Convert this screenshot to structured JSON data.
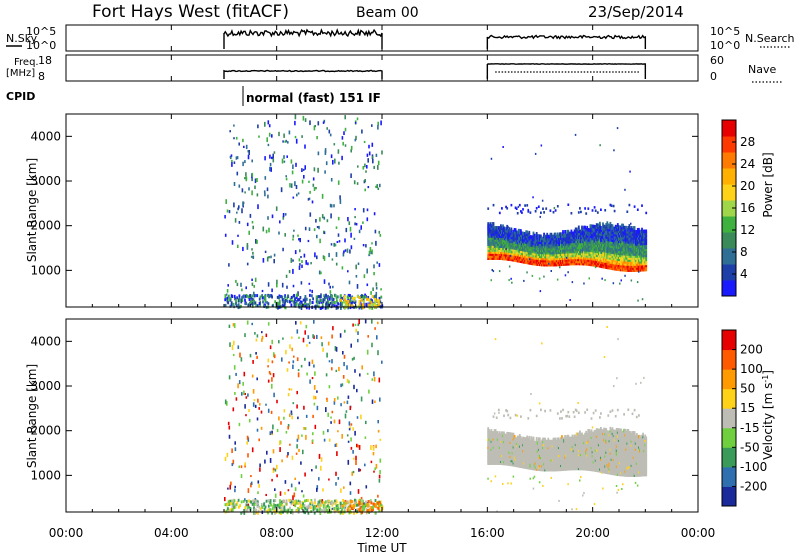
{
  "header": {
    "radar": "Fort Hays West (fitACF)",
    "beam": "Beam 00",
    "date": "23/Sep/2014"
  },
  "noise_panel": {
    "left_label": "N.Sky",
    "right_label": "N.Search",
    "left_ticks": [
      "10^5",
      "10^0"
    ],
    "right_ticks": [
      "10^5",
      "10^0"
    ]
  },
  "freq_panel": {
    "left_label_line1": "Freq.",
    "left_label_line2": "[MHz]",
    "right_label": "Nave",
    "left_ticks": [
      "18",
      "8"
    ],
    "right_ticks": [
      "60",
      "0"
    ]
  },
  "cpid": {
    "label": "CPID",
    "mode": "normal (fast) 151 IF"
  },
  "x_axis": {
    "label": "Time UT",
    "ticks": [
      "00:00",
      "04:00",
      "08:00",
      "12:00",
      "16:00",
      "20:00",
      "00:00"
    ]
  },
  "chart_data": [
    {
      "type": "heatmap",
      "title": "",
      "xlabel": "Time UT",
      "ylabel": "Slant Range [km]",
      "xlim_hours": [
        0,
        24
      ],
      "ylim_km": [
        180,
        4500
      ],
      "y_ticks": [
        1000,
        2000,
        3000,
        4000
      ],
      "colorbar": {
        "label": "Power [dB]",
        "ticks": [
          "4",
          "8",
          "12",
          "16",
          "20",
          "24",
          "28"
        ],
        "colors": [
          "#1a1aff",
          "#1f3fa8",
          "#2f6f96",
          "#3b8a5a",
          "#3fb13f",
          "#9fd64a",
          "#ffd21a",
          "#ffb000",
          "#ff7a00",
          "#ff3a00",
          "#e60000"
        ]
      },
      "data_windows_hours": [
        [
          6.0,
          12.0
        ],
        [
          16.0,
          22.0
        ]
      ],
      "features": [
        {
          "name": "sparse scatter",
          "t": [
            6.0,
            12.0
          ],
          "range_km": [
            200,
            4500
          ]
        },
        {
          "name": "near-range echoes",
          "t": [
            6.0,
            12.0
          ],
          "range_km": [
            180,
            480
          ]
        },
        {
          "name": "main band top",
          "t": [
            16.0,
            22.0
          ],
          "range_km": [
            1500,
            2150
          ]
        },
        {
          "name": "main band bottom (strong)",
          "t": [
            16.0,
            22.0
          ],
          "range_km": [
            1100,
            1400
          ],
          "power_db": 28
        }
      ]
    },
    {
      "type": "heatmap",
      "title": "",
      "xlabel": "Time UT",
      "ylabel": "Slant Range [km]",
      "xlim_hours": [
        0,
        24
      ],
      "ylim_km": [
        180,
        4500
      ],
      "y_ticks": [
        1000,
        2000,
        3000,
        4000
      ],
      "colorbar": {
        "label": "Velocity [m s^-1]",
        "ticks": [
          "200",
          "100",
          "50",
          "15",
          "-15",
          "-50",
          "-100",
          "-200"
        ],
        "colors": [
          "#1a2a9a",
          "#2f6fb0",
          "#3a9a5a",
          "#6fcf3f",
          "#bdbdb5",
          "#ffd21a",
          "#ff9a00",
          "#ff5a00",
          "#e60000"
        ]
      },
      "data_windows_hours": [
        [
          6.0,
          12.0
        ],
        [
          16.0,
          22.0
        ]
      ],
      "features": [
        {
          "name": "sparse scatter",
          "t": [
            6.0,
            12.0
          ],
          "range_km": [
            200,
            4500
          ]
        },
        {
          "name": "ground scatter band",
          "t": [
            16.0,
            22.0
          ],
          "range_km": [
            1100,
            2400
          ],
          "velocity": "-15..15"
        }
      ]
    }
  ]
}
